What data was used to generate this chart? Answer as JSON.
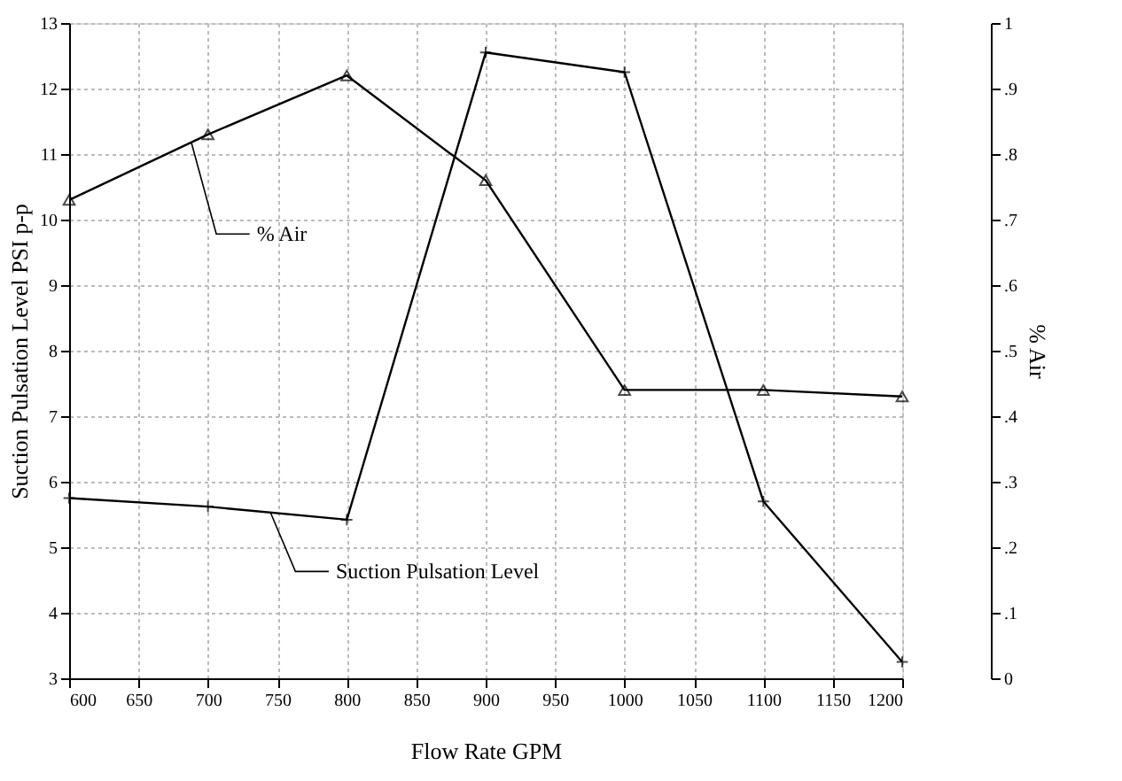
{
  "chart_data": {
    "type": "line",
    "xlabel": "Flow Rate GPM",
    "ylabel": "Suction Pulsation Level PSI p-p",
    "y2label": "% Air",
    "x": [
      600,
      700,
      800,
      900,
      1000,
      1100,
      1200
    ],
    "series": [
      {
        "name": "Suction Pulsation Level",
        "color": "#000000",
        "marker": "cross",
        "values": [
          5.75,
          5.62,
          5.42,
          12.55,
          12.25,
          5.7,
          3.25
        ]
      },
      {
        "name": "% Air",
        "color": "#000000",
        "marker": "triangle",
        "axis": "y2",
        "values": [
          0.73,
          0.83,
          0.92,
          0.76,
          0.44,
          0.44,
          0.43
        ]
      }
    ],
    "xlim": [
      600,
      1200
    ],
    "xticks": [
      600,
      650,
      700,
      750,
      800,
      850,
      900,
      950,
      1000,
      1050,
      1100,
      1150,
      1200
    ],
    "ylim": [
      3,
      13
    ],
    "yticks": [
      3,
      4,
      5,
      6,
      7,
      8,
      9,
      10,
      11,
      12,
      13
    ],
    "y2lim": [
      0,
      1
    ],
    "y2ticks": [
      0,
      {
        "value": 0.1,
        "label": ".1"
      },
      {
        "value": 0.2,
        "label": ".2"
      },
      {
        "value": 0.3,
        "label": ".3"
      },
      {
        "value": 0.4,
        "label": ".4"
      },
      {
        "value": 0.5,
        "label": ".5"
      },
      {
        "value": 0.6,
        "label": ".6"
      },
      {
        "value": 0.7,
        "label": ".7"
      },
      {
        "value": 0.8,
        "label": ".8"
      },
      {
        "value": 0.9,
        "label": ".9"
      },
      1
    ],
    "grid": true,
    "line_style": "solid"
  }
}
